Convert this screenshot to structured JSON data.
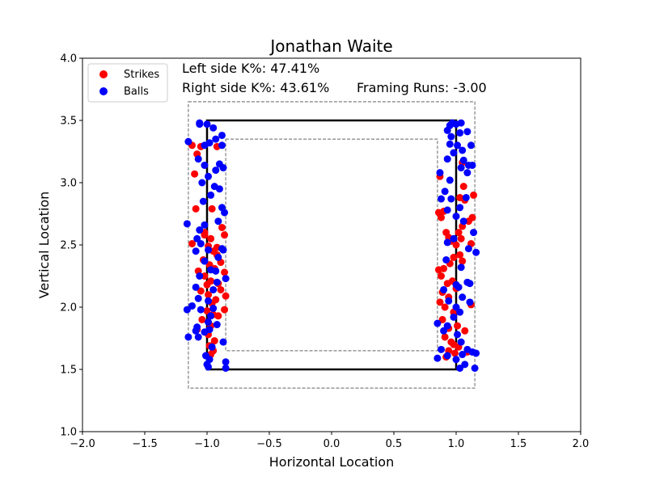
{
  "chart_data": {
    "type": "scatter",
    "title": "Jonathan Waite",
    "xlabel": "Horizontal Location",
    "ylabel": "Vertical Location",
    "xlim": [
      -2.0,
      2.0
    ],
    "ylim": [
      1.0,
      4.0
    ],
    "xticks": [
      "−2.0",
      "−1.5",
      "−1.0",
      "−0.5",
      "0.0",
      "0.5",
      "1.0",
      "1.5",
      "2.0"
    ],
    "xtick_values": [
      -2.0,
      -1.5,
      -1.0,
      -0.5,
      0.0,
      0.5,
      1.0,
      1.5,
      2.0
    ],
    "yticks": [
      "1.0",
      "1.5",
      "2.0",
      "2.5",
      "3.0",
      "3.5",
      "4.0"
    ],
    "ytick_values": [
      1.0,
      1.5,
      2.0,
      2.5,
      3.0,
      3.5,
      4.0
    ],
    "grid": false,
    "legend_position": "top-left",
    "annotations": {
      "left_k": "Left side K%: 47.41%",
      "right_k": "Right side K%: 43.61%",
      "framing": "Framing Runs: -3.00"
    },
    "zone": {
      "x": [
        -1.0,
        1.0
      ],
      "y": [
        1.5,
        3.5
      ]
    },
    "outer_dashed": {
      "x": [
        -1.15,
        1.15
      ],
      "y": [
        1.35,
        3.65
      ]
    },
    "inner_dashed": {
      "x": [
        -0.85,
        0.85
      ],
      "y": [
        1.65,
        3.35
      ]
    },
    "colors": {
      "strikes": "#ff0000",
      "balls": "#0000ff",
      "zone": "#000000",
      "dashed": "#808080"
    },
    "series": [
      {
        "name": "Strikes",
        "color": "#ff0000",
        "points": [
          [
            -1.12,
            3.3
          ],
          [
            -1.1,
            3.07
          ],
          [
            -1.08,
            3.23
          ],
          [
            -1.05,
            3.29
          ],
          [
            -0.92,
            3.29
          ],
          [
            -1.09,
            2.79
          ],
          [
            -0.96,
            2.79
          ],
          [
            -0.88,
            2.64
          ],
          [
            -0.86,
            2.58
          ],
          [
            -1.12,
            2.51
          ],
          [
            -1.02,
            2.6
          ],
          [
            -0.97,
            2.55
          ],
          [
            -0.99,
            2.49
          ],
          [
            -0.95,
            2.45
          ],
          [
            -0.92,
            2.42
          ],
          [
            -1.03,
            2.38
          ],
          [
            -0.98,
            2.34
          ],
          [
            -0.94,
            2.31
          ],
          [
            -1.07,
            2.29
          ],
          [
            -1.02,
            2.25
          ],
          [
            -0.97,
            2.21
          ],
          [
            -0.91,
            2.19
          ],
          [
            -0.89,
            2.14
          ],
          [
            -1.05,
            2.13
          ],
          [
            -0.99,
            2.1
          ],
          [
            -0.85,
            2.09
          ],
          [
            -0.93,
            2.06
          ],
          [
            -0.96,
            2.03
          ],
          [
            -1.0,
            1.97
          ],
          [
            -0.95,
            1.94
          ],
          [
            -0.91,
            1.93
          ],
          [
            -1.04,
            1.9
          ],
          [
            -0.97,
            1.85
          ],
          [
            -0.86,
            1.98
          ],
          [
            -1.08,
            1.82
          ],
          [
            -0.99,
            1.78
          ],
          [
            -0.94,
            1.73
          ],
          [
            -0.98,
            1.69
          ],
          [
            -0.95,
            1.65
          ],
          [
            -0.97,
            1.62
          ],
          [
            -0.89,
            2.36
          ],
          [
            -0.86,
            2.28
          ],
          [
            -0.92,
            2.48
          ],
          [
            -1.0,
            2.18
          ],
          [
            -1.02,
            2.58
          ],
          [
            0.87,
            3.05
          ],
          [
            0.9,
            2.77
          ],
          [
            0.88,
            2.72
          ],
          [
            0.86,
            2.76
          ],
          [
            0.92,
            2.6
          ],
          [
            0.94,
            2.56
          ],
          [
            0.96,
            2.53
          ],
          [
            1.05,
            3.16
          ],
          [
            1.06,
            2.97
          ],
          [
            1.03,
            2.88
          ],
          [
            1.07,
            2.86
          ],
          [
            1.1,
            2.69
          ],
          [
            1.13,
            2.72
          ],
          [
            1.05,
            2.65
          ],
          [
            1.02,
            2.6
          ],
          [
            1.04,
            2.55
          ],
          [
            1.0,
            2.5
          ],
          [
            1.12,
            2.51
          ],
          [
            1.03,
            2.42
          ],
          [
            0.98,
            2.4
          ],
          [
            1.05,
            2.37
          ],
          [
            0.95,
            2.35
          ],
          [
            0.9,
            2.31
          ],
          [
            0.86,
            2.3
          ],
          [
            0.88,
            2.25
          ],
          [
            0.97,
            2.21
          ],
          [
            0.93,
            2.19
          ],
          [
            1.0,
            2.15
          ],
          [
            0.89,
            2.12
          ],
          [
            0.94,
            2.08
          ],
          [
            0.87,
            2.04
          ],
          [
            0.91,
            2.0
          ],
          [
            1.12,
            2.02
          ],
          [
            0.98,
            1.96
          ],
          [
            0.89,
            1.9
          ],
          [
            1.01,
            1.85
          ],
          [
            0.94,
            1.83
          ],
          [
            1.07,
            1.81
          ],
          [
            0.91,
            1.76
          ],
          [
            0.96,
            1.72
          ],
          [
            0.98,
            1.7
          ],
          [
            1.02,
            1.68
          ],
          [
            0.94,
            1.65
          ],
          [
            0.99,
            1.63
          ],
          [
            1.09,
            1.64
          ],
          [
            0.92,
            1.6
          ],
          [
            1.14,
            2.9
          ]
        ]
      },
      {
        "name": "Balls",
        "color": "#0000ff",
        "points": [
          [
            -1.15,
            3.33
          ],
          [
            -1.06,
            3.48
          ],
          [
            -1.06,
            3.47
          ],
          [
            -1.0,
            3.47
          ],
          [
            -0.95,
            3.44
          ],
          [
            -0.93,
            3.35
          ],
          [
            -0.88,
            3.38
          ],
          [
            -0.98,
            3.32
          ],
          [
            -1.02,
            3.3
          ],
          [
            -0.88,
            3.3
          ],
          [
            -1.07,
            3.19
          ],
          [
            -1.02,
            3.14
          ],
          [
            -0.9,
            3.15
          ],
          [
            -0.87,
            3.12
          ],
          [
            -0.93,
            3.1
          ],
          [
            -0.99,
            3.05
          ],
          [
            -1.04,
            3.0
          ],
          [
            -0.94,
            2.97
          ],
          [
            -0.9,
            2.95
          ],
          [
            -0.97,
            2.9
          ],
          [
            -1.03,
            2.85
          ],
          [
            -0.88,
            2.8
          ],
          [
            -1.06,
            2.62
          ],
          [
            -1.02,
            2.66
          ],
          [
            -0.91,
            2.69
          ],
          [
            -1.16,
            2.67
          ],
          [
            -1.08,
            2.55
          ],
          [
            -1.05,
            2.51
          ],
          [
            -0.99,
            2.46
          ],
          [
            -0.88,
            2.47
          ],
          [
            -1.09,
            2.45
          ],
          [
            -0.91,
            2.4
          ],
          [
            -1.02,
            2.37
          ],
          [
            -0.97,
            2.3
          ],
          [
            -0.85,
            2.23
          ],
          [
            -1.06,
            2.25
          ],
          [
            -0.92,
            2.2
          ],
          [
            -1.09,
            2.16
          ],
          [
            -0.99,
            2.05
          ],
          [
            -1.07,
            2.07
          ],
          [
            -0.95,
            2.14
          ],
          [
            -1.05,
            1.98
          ],
          [
            -1.16,
            1.98
          ],
          [
            -1.12,
            2.01
          ],
          [
            -0.95,
            1.99
          ],
          [
            -0.99,
            1.88
          ],
          [
            -1.08,
            1.84
          ],
          [
            -0.92,
            1.86
          ],
          [
            -0.98,
            1.82
          ],
          [
            -1.02,
            1.8
          ],
          [
            -1.15,
            1.76
          ],
          [
            -1.07,
            1.76
          ],
          [
            -0.87,
            1.72
          ],
          [
            -0.96,
            1.68
          ],
          [
            -1.01,
            1.61
          ],
          [
            -0.98,
            1.58
          ],
          [
            -0.85,
            1.56
          ],
          [
            -0.99,
            1.52
          ],
          [
            -1.0,
            1.54
          ],
          [
            -0.85,
            1.51
          ],
          [
            -1.09,
            1.81
          ],
          [
            -0.97,
            1.93
          ],
          [
            -0.87,
            2.46
          ],
          [
            -0.86,
            2.76
          ],
          [
            -0.93,
            2.29
          ],
          [
            0.97,
            3.48
          ],
          [
            0.95,
            3.46
          ],
          [
            1.0,
            3.47
          ],
          [
            1.04,
            3.48
          ],
          [
            0.93,
            3.42
          ],
          [
            0.96,
            3.37
          ],
          [
            1.03,
            3.4
          ],
          [
            1.09,
            3.41
          ],
          [
            0.95,
            3.31
          ],
          [
            1.01,
            3.3
          ],
          [
            1.12,
            3.3
          ],
          [
            0.98,
            3.24
          ],
          [
            1.05,
            3.26
          ],
          [
            1.06,
            3.18
          ],
          [
            0.93,
            3.19
          ],
          [
            1.1,
            3.14
          ],
          [
            1.13,
            3.14
          ],
          [
            1.04,
            3.12
          ],
          [
            1.09,
            3.08
          ],
          [
            0.87,
            3.08
          ],
          [
            0.95,
            3.02
          ],
          [
            0.91,
            2.93
          ],
          [
            0.88,
            2.87
          ],
          [
            0.96,
            2.87
          ],
          [
            1.08,
            2.88
          ],
          [
            1.03,
            2.8
          ],
          [
            0.93,
            2.78
          ],
          [
            1.0,
            2.73
          ],
          [
            1.06,
            2.69
          ],
          [
            1.14,
            2.6
          ],
          [
            0.98,
            2.55
          ],
          [
            0.93,
            2.52
          ],
          [
            1.1,
            2.47
          ],
          [
            1.16,
            2.44
          ],
          [
            0.92,
            2.38
          ],
          [
            1.04,
            2.32
          ],
          [
            1.09,
            2.2
          ],
          [
            1.11,
            2.19
          ],
          [
            1.0,
            2.18
          ],
          [
            1.02,
            2.16
          ],
          [
            0.9,
            2.14
          ],
          [
            1.05,
            2.08
          ],
          [
            0.94,
            2.05
          ],
          [
            1.11,
            2.04
          ],
          [
            1.0,
            2.0
          ],
          [
            1.03,
            1.96
          ],
          [
            0.98,
            1.92
          ],
          [
            0.93,
            1.85
          ],
          [
            0.9,
            1.81
          ],
          [
            0.85,
            1.87
          ],
          [
            1.04,
            1.72
          ],
          [
            1.09,
            1.66
          ],
          [
            1.13,
            1.64
          ],
          [
            1.16,
            1.63
          ],
          [
            1.05,
            1.62
          ],
          [
            0.93,
            1.61
          ],
          [
            1.0,
            1.58
          ],
          [
            1.07,
            1.54
          ],
          [
            1.15,
            1.51
          ],
          [
            1.03,
            1.51
          ],
          [
            0.88,
            1.66
          ],
          [
            0.85,
            1.59
          ],
          [
            1.01,
            1.78
          ]
        ]
      }
    ]
  }
}
